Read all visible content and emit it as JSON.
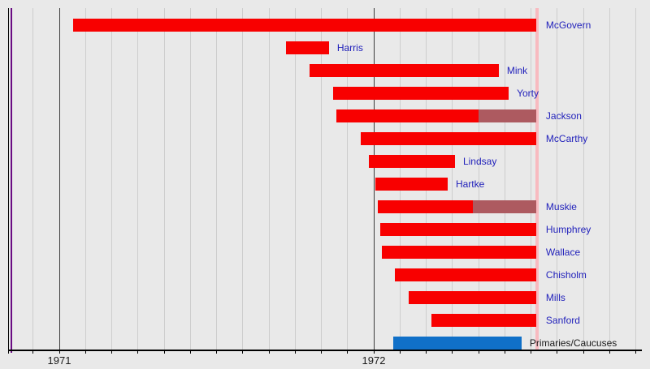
{
  "colors": {
    "background": "#e9e9e9",
    "bar_active": "#f80000",
    "bar_withdrawn": "#ad5a60",
    "bar_primaries": "#1070c8",
    "candidate_label": "#2222bb",
    "primaries_label": "#1a1a1a",
    "month_gridline": "#cdcdcd",
    "year_gridline": "#3c3c3c",
    "axis": "#000000",
    "year_label": "#1a1a1a",
    "timeline_start_line": "#000000",
    "purple_marker_line": "#6a0c83",
    "convention_line": "#f8bac0"
  },
  "axis": {
    "unit": "months since 1971-01-01",
    "tick_start_month": -1,
    "tick_end_month": 22,
    "year_labels": [
      {
        "text": "1971",
        "month": 0
      },
      {
        "text": "1972",
        "month": 12
      }
    ]
  },
  "markers": {
    "timeline_start_month": -1.95,
    "purple_marker_month": -1.84,
    "convention_month": 18.23
  },
  "chart_data": {
    "type": "bar",
    "variant": "horizontal-timeline-gantt",
    "time_unit": "months since 1971-01-01 (decimal)",
    "x_range_months": [
      -1.95,
      22.6
    ],
    "title": "",
    "grid": "monthly vertical gridlines, year lines darker",
    "series": [
      {
        "label": "McGovern",
        "start": 0.53,
        "active_end": 18.2,
        "end": 18.2
      },
      {
        "label": "Harris",
        "start": 8.65,
        "active_end": 10.29,
        "end": 10.29
      },
      {
        "label": "Mink",
        "start": 9.55,
        "active_end": 16.77,
        "end": 16.77
      },
      {
        "label": "Yorty",
        "start": 10.45,
        "active_end": 17.15,
        "end": 17.15
      },
      {
        "label": "Jackson",
        "start": 10.57,
        "active_end": 16.0,
        "end": 18.2
      },
      {
        "label": "McCarthy",
        "start": 11.5,
        "active_end": 18.2,
        "end": 18.2
      },
      {
        "label": "Lindsay",
        "start": 11.81,
        "active_end": 15.1,
        "end": 15.1
      },
      {
        "label": "Hartke",
        "start": 12.06,
        "active_end": 14.82,
        "end": 14.82
      },
      {
        "label": "Muskie",
        "start": 12.16,
        "active_end": 15.78,
        "end": 18.2
      },
      {
        "label": "Humphrey",
        "start": 12.25,
        "active_end": 18.2,
        "end": 18.2
      },
      {
        "label": "Wallace",
        "start": 12.31,
        "active_end": 18.2,
        "end": 18.2
      },
      {
        "label": "Chisholm",
        "start": 12.8,
        "active_end": 18.2,
        "end": 18.2
      },
      {
        "label": "Mills",
        "start": 13.33,
        "active_end": 18.2,
        "end": 18.2
      },
      {
        "label": "Sanford",
        "start": 14.2,
        "active_end": 18.2,
        "end": 18.2
      },
      {
        "label": "Primaries/Caucuses",
        "kind": "primaries",
        "start": 12.74,
        "active_end": 17.64,
        "end": 17.64
      }
    ]
  }
}
